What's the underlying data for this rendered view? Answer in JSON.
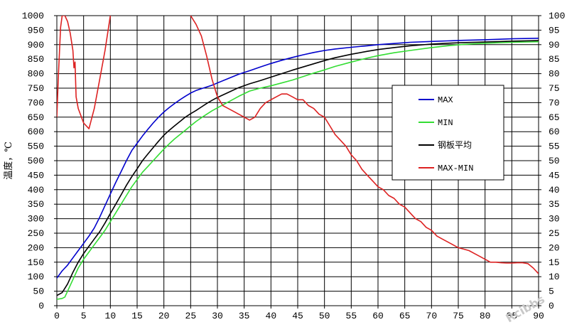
{
  "chart_data": {
    "type": "line",
    "xlim": [
      0,
      90
    ],
    "ylim_left": [
      0,
      1000
    ],
    "ylim_right": [
      0,
      100
    ],
    "x_ticks": [
      "0",
      "5",
      "10",
      "15",
      "20",
      "25",
      "30",
      "35",
      "40",
      "45",
      "50",
      "55",
      "60",
      "65",
      "70",
      "75",
      "80",
      "85",
      "90"
    ],
    "y_ticks_left": [
      "0",
      "50",
      "100",
      "150",
      "200",
      "250",
      "300",
      "350",
      "400",
      "450",
      "500",
      "550",
      "600",
      "650",
      "700",
      "750",
      "800",
      "850",
      "900",
      "950",
      "1000"
    ],
    "y_ticks_right": [
      "0",
      "5",
      "10",
      "15",
      "20",
      "25",
      "30",
      "35",
      "40",
      "45",
      "50",
      "55",
      "60",
      "65",
      "70",
      "75",
      "80",
      "85",
      "90",
      "95",
      "100"
    ],
    "ylabel_left": "温度，℃",
    "grid": true,
    "legend_position": "right",
    "series": [
      {
        "name": "MAX",
        "color": "#0000cc",
        "axis": "left",
        "points": [
          [
            0,
            95
          ],
          [
            1,
            120
          ],
          [
            2,
            140
          ],
          [
            3,
            165
          ],
          [
            4,
            190
          ],
          [
            5,
            215
          ],
          [
            6,
            240
          ],
          [
            7,
            268
          ],
          [
            8,
            305
          ],
          [
            9,
            345
          ],
          [
            10,
            385
          ],
          [
            11,
            425
          ],
          [
            12,
            462
          ],
          [
            13,
            500
          ],
          [
            14,
            535
          ],
          [
            15,
            560
          ],
          [
            16,
            585
          ],
          [
            17,
            608
          ],
          [
            18,
            630
          ],
          [
            19,
            650
          ],
          [
            20,
            668
          ],
          [
            21,
            683
          ],
          [
            22,
            697
          ],
          [
            23,
            710
          ],
          [
            24,
            722
          ],
          [
            25,
            733
          ],
          [
            26,
            742
          ],
          [
            27,
            748
          ],
          [
            28,
            754
          ],
          [
            29,
            760
          ],
          [
            30,
            768
          ],
          [
            32,
            783
          ],
          [
            34,
            798
          ],
          [
            36,
            810
          ],
          [
            38,
            823
          ],
          [
            40,
            835
          ],
          [
            42,
            846
          ],
          [
            44,
            856
          ],
          [
            46,
            865
          ],
          [
            48,
            873
          ],
          [
            50,
            880
          ],
          [
            52,
            885
          ],
          [
            55,
            891
          ],
          [
            58,
            896
          ],
          [
            60,
            900
          ],
          [
            63,
            904
          ],
          [
            66,
            908
          ],
          [
            70,
            911
          ],
          [
            73,
            913
          ],
          [
            76,
            915
          ],
          [
            80,
            917
          ],
          [
            85,
            920
          ],
          [
            90,
            922
          ]
        ]
      },
      {
        "name": "MIN",
        "color": "#33dd33",
        "axis": "left",
        "points": [
          [
            0,
            22
          ],
          [
            1,
            25
          ],
          [
            1.5,
            30
          ],
          [
            2,
            50
          ],
          [
            3,
            90
          ],
          [
            4,
            130
          ],
          [
            5,
            160
          ],
          [
            6,
            185
          ],
          [
            7,
            210
          ],
          [
            8,
            235
          ],
          [
            9,
            260
          ],
          [
            10,
            290
          ],
          [
            11,
            320
          ],
          [
            12,
            350
          ],
          [
            13,
            380
          ],
          [
            14,
            410
          ],
          [
            15,
            435
          ],
          [
            16,
            460
          ],
          [
            17,
            480
          ],
          [
            18,
            500
          ],
          [
            19,
            520
          ],
          [
            20,
            540
          ],
          [
            21,
            558
          ],
          [
            22,
            575
          ],
          [
            23,
            590
          ],
          [
            24,
            605
          ],
          [
            25,
            620
          ],
          [
            26,
            635
          ],
          [
            27,
            648
          ],
          [
            28,
            660
          ],
          [
            29,
            672
          ],
          [
            30,
            682
          ],
          [
            32,
            702
          ],
          [
            34,
            722
          ],
          [
            36,
            740
          ],
          [
            38,
            750
          ],
          [
            40,
            758
          ],
          [
            42,
            768
          ],
          [
            44,
            778
          ],
          [
            46,
            790
          ],
          [
            48,
            802
          ],
          [
            50,
            813
          ],
          [
            52,
            825
          ],
          [
            55,
            840
          ],
          [
            58,
            854
          ],
          [
            60,
            862
          ],
          [
            63,
            872
          ],
          [
            66,
            880
          ],
          [
            70,
            890
          ],
          [
            73,
            896
          ],
          [
            76,
            901
          ],
          [
            80,
            905
          ],
          [
            85,
            908
          ],
          [
            90,
            910
          ]
        ]
      },
      {
        "name": "钢板平均",
        "color": "#000000",
        "axis": "left",
        "points": [
          [
            0,
            35
          ],
          [
            1,
            45
          ],
          [
            2,
            75
          ],
          [
            3,
            115
          ],
          [
            4,
            150
          ],
          [
            5,
            180
          ],
          [
            6,
            205
          ],
          [
            7,
            230
          ],
          [
            8,
            255
          ],
          [
            9,
            285
          ],
          [
            10,
            318
          ],
          [
            11,
            350
          ],
          [
            12,
            382
          ],
          [
            13,
            415
          ],
          [
            14,
            445
          ],
          [
            15,
            472
          ],
          [
            16,
            500
          ],
          [
            17,
            523
          ],
          [
            18,
            545
          ],
          [
            19,
            567
          ],
          [
            20,
            588
          ],
          [
            21,
            605
          ],
          [
            22,
            620
          ],
          [
            23,
            635
          ],
          [
            24,
            650
          ],
          [
            25,
            662
          ],
          [
            26,
            673
          ],
          [
            27,
            685
          ],
          [
            28,
            697
          ],
          [
            29,
            708
          ],
          [
            30,
            718
          ],
          [
            32,
            735
          ],
          [
            34,
            752
          ],
          [
            36,
            765
          ],
          [
            38,
            776
          ],
          [
            40,
            788
          ],
          [
            42,
            800
          ],
          [
            44,
            812
          ],
          [
            46,
            823
          ],
          [
            48,
            834
          ],
          [
            50,
            845
          ],
          [
            52,
            855
          ],
          [
            55,
            867
          ],
          [
            58,
            877
          ],
          [
            60,
            883
          ],
          [
            63,
            890
          ],
          [
            66,
            896
          ],
          [
            70,
            902
          ],
          [
            73,
            905
          ],
          [
            76,
            907
          ],
          [
            80,
            909
          ],
          [
            85,
            912
          ],
          [
            90,
            914
          ]
        ]
      },
      {
        "name": "MAX-MIN",
        "color": "#dd2222",
        "axis": "right",
        "points": [
          [
            0,
            65
          ],
          [
            0.3,
            80
          ],
          [
            0.7,
            96
          ],
          [
            1,
            100
          ],
          [
            1.5,
            100
          ],
          [
            2,
            98
          ],
          [
            2.5,
            94
          ],
          [
            3,
            88
          ],
          [
            3.2,
            82
          ],
          [
            3.4,
            84
          ],
          [
            3.6,
            72
          ],
          [
            4,
            68
          ],
          [
            5,
            63
          ],
          [
            6,
            61
          ],
          [
            7,
            68
          ],
          [
            8,
            78
          ],
          [
            9,
            88
          ],
          [
            10,
            100
          ],
          [
            10.5,
            104
          ],
          [
            24.5,
            104
          ],
          [
            25,
            100
          ],
          [
            26,
            97
          ],
          [
            27,
            93
          ],
          [
            28,
            86
          ],
          [
            29,
            78
          ],
          [
            30,
            72
          ],
          [
            31,
            69
          ],
          [
            32,
            68
          ],
          [
            33,
            67
          ],
          [
            34,
            66
          ],
          [
            35,
            65
          ],
          [
            36,
            64
          ],
          [
            37,
            65
          ],
          [
            38,
            68
          ],
          [
            39,
            70
          ],
          [
            40,
            71
          ],
          [
            41,
            72
          ],
          [
            42,
            73
          ],
          [
            43,
            73
          ],
          [
            44,
            72
          ],
          [
            45,
            71
          ],
          [
            46,
            71
          ],
          [
            47,
            69
          ],
          [
            48,
            68
          ],
          [
            49,
            66
          ],
          [
            50,
            65
          ],
          [
            51,
            62
          ],
          [
            52,
            59
          ],
          [
            53,
            57
          ],
          [
            54,
            55
          ],
          [
            55,
            52
          ],
          [
            56,
            50
          ],
          [
            57,
            47
          ],
          [
            58,
            45
          ],
          [
            59,
            43
          ],
          [
            60,
            41
          ],
          [
            61,
            40
          ],
          [
            62,
            38
          ],
          [
            63,
            37
          ],
          [
            64,
            35
          ],
          [
            65,
            34
          ],
          [
            66,
            32
          ],
          [
            67,
            30
          ],
          [
            68,
            29
          ],
          [
            69,
            27
          ],
          [
            70,
            26
          ],
          [
            71,
            24
          ],
          [
            72,
            23
          ],
          [
            73,
            22
          ],
          [
            74,
            21
          ],
          [
            75,
            20
          ],
          [
            76,
            19.5
          ],
          [
            77,
            19
          ],
          [
            78,
            18
          ],
          [
            79,
            17
          ],
          [
            80,
            16
          ],
          [
            81,
            15
          ],
          [
            82,
            15
          ],
          [
            83,
            14.8
          ],
          [
            84,
            14.7
          ],
          [
            85,
            14.7
          ],
          [
            86,
            14.8
          ],
          [
            87,
            14.8
          ],
          [
            88,
            14.5
          ],
          [
            89,
            13
          ],
          [
            90,
            11
          ]
        ]
      }
    ]
  },
  "watermark": "Rcibbs"
}
